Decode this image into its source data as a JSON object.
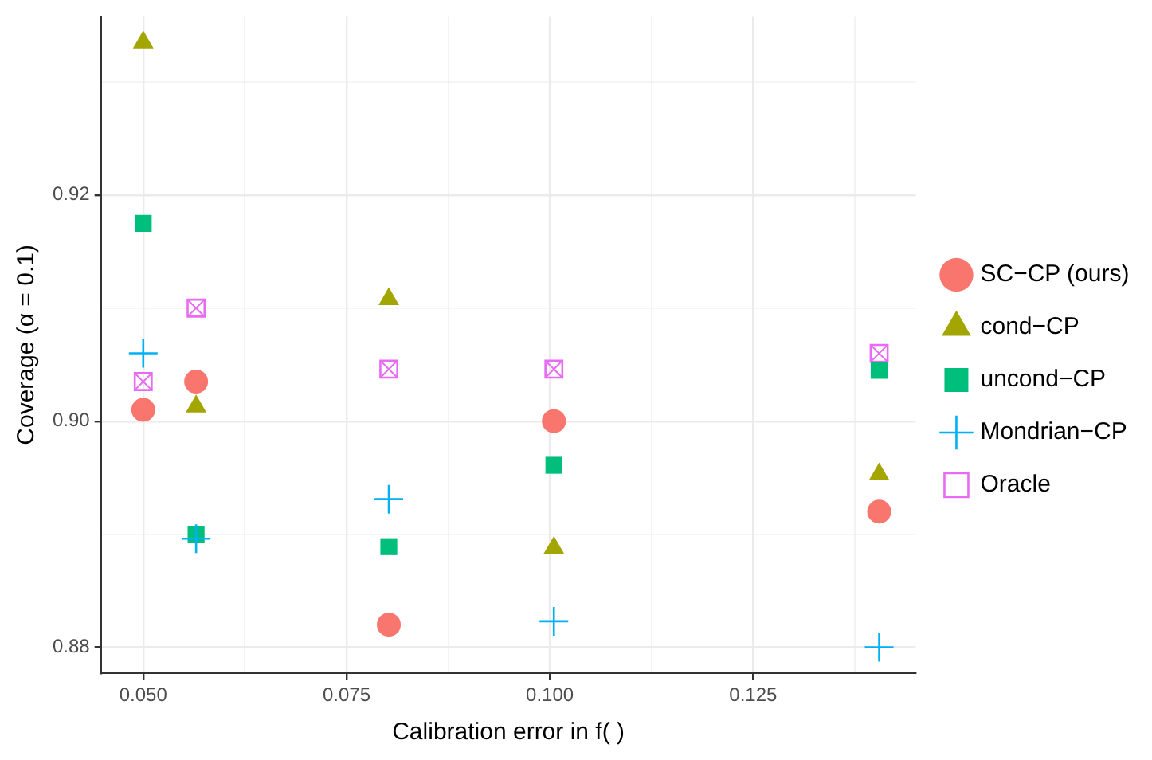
{
  "chart_data": {
    "type": "scatter",
    "xlabel": "Calibration error in f( )",
    "ylabel": "Coverage (α = 0.1)",
    "xlim": [
      0.0448,
      0.145
    ],
    "ylim": [
      0.8777,
      0.9358
    ],
    "xticks": [
      {
        "value": 0.05,
        "label": "0.050"
      },
      {
        "value": 0.0625,
        "label": null
      },
      {
        "value": 0.075,
        "label": "0.075"
      },
      {
        "value": 0.0875,
        "label": null
      },
      {
        "value": 0.1,
        "label": "0.100"
      },
      {
        "value": 0.1125,
        "label": null
      },
      {
        "value": 0.125,
        "label": "0.125"
      },
      {
        "value": 0.1375,
        "label": null
      }
    ],
    "yticks": [
      {
        "value": 0.88,
        "label": "0.88"
      },
      {
        "value": 0.89,
        "label": null
      },
      {
        "value": 0.9,
        "label": "0.90"
      },
      {
        "value": 0.91,
        "label": null
      },
      {
        "value": 0.92,
        "label": "0.92"
      },
      {
        "value": 0.93,
        "label": null
      }
    ],
    "grid": true,
    "legend": "right",
    "series": [
      {
        "name": "SC−CP (ours)",
        "color": "#f8766d",
        "marker": "circle",
        "x": [
          0.05,
          0.0565,
          0.0802,
          0.1005,
          0.1405
        ],
        "values": [
          0.901,
          0.9035,
          0.882,
          0.9,
          0.892
        ]
      },
      {
        "name": "cond−CP",
        "color": "#a3a500",
        "marker": "triangle",
        "x": [
          0.05,
          0.0565,
          0.0802,
          0.1005,
          0.1405
        ],
        "values": [
          0.9335,
          0.9013,
          0.9108,
          0.8888,
          0.8953
        ]
      },
      {
        "name": "uncond−CP",
        "color": "#00bf7d",
        "marker": "square",
        "x": [
          0.05,
          0.0565,
          0.0802,
          0.1005,
          0.1405
        ],
        "values": [
          0.9175,
          0.89,
          0.8889,
          0.8961,
          0.9045
        ]
      },
      {
        "name": "Mondrian−CP",
        "color": "#00b0f6",
        "marker": "cross",
        "x": [
          0.05,
          0.0565,
          0.0802,
          0.1005,
          0.1405
        ],
        "values": [
          0.906,
          0.8896,
          0.8931,
          0.8823,
          0.88
        ]
      },
      {
        "name": "Oracle",
        "color": "#e76bf3",
        "marker": "square-x",
        "x": [
          0.05,
          0.0565,
          0.0802,
          0.1005,
          0.1405
        ],
        "values": [
          0.9035,
          0.91,
          0.9046,
          0.9046,
          0.906
        ]
      }
    ]
  }
}
